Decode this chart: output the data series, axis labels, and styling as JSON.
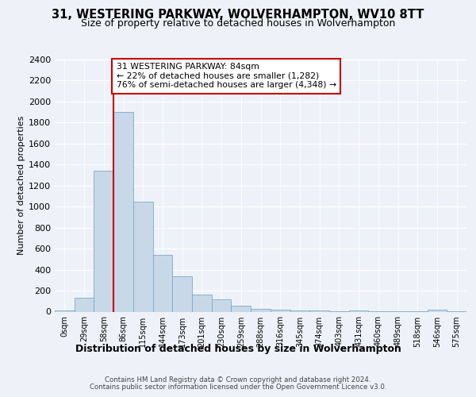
{
  "title1": "31, WESTERING PARKWAY, WOLVERHAMPTON, WV10 8TT",
  "title2": "Size of property relative to detached houses in Wolverhampton",
  "xlabel": "Distribution of detached houses by size in Wolverhampton",
  "ylabel": "Number of detached properties",
  "bins": [
    "0sqm",
    "29sqm",
    "58sqm",
    "86sqm",
    "115sqm",
    "144sqm",
    "173sqm",
    "201sqm",
    "230sqm",
    "259sqm",
    "288sqm",
    "316sqm",
    "345sqm",
    "374sqm",
    "403sqm",
    "431sqm",
    "460sqm",
    "489sqm",
    "518sqm",
    "546sqm",
    "575sqm"
  ],
  "values": [
    10,
    130,
    1340,
    1900,
    1050,
    540,
    335,
    165,
    115,
    60,
    30,
    18,
    15,
    10,
    5,
    15,
    3,
    3,
    3,
    20,
    3
  ],
  "bar_color": "#c8d8e8",
  "bar_edge_color": "#7aaac8",
  "property_line_bin": 3,
  "annotation_text": "31 WESTERING PARKWAY: 84sqm\n← 22% of detached houses are smaller (1,282)\n76% of semi-detached houses are larger (4,348) →",
  "annotation_box_color": "#ffffff",
  "annotation_box_edge": "#cc0000",
  "vline_color": "#cc0000",
  "footer1": "Contains HM Land Registry data © Crown copyright and database right 2024.",
  "footer2": "Contains public sector information licensed under the Open Government Licence v3.0.",
  "bg_color": "#eef2f8",
  "plot_bg_color": "#eef2f8",
  "ylim": [
    0,
    2400
  ],
  "yticks": [
    0,
    200,
    400,
    600,
    800,
    1000,
    1200,
    1400,
    1600,
    1800,
    2000,
    2200,
    2400
  ]
}
